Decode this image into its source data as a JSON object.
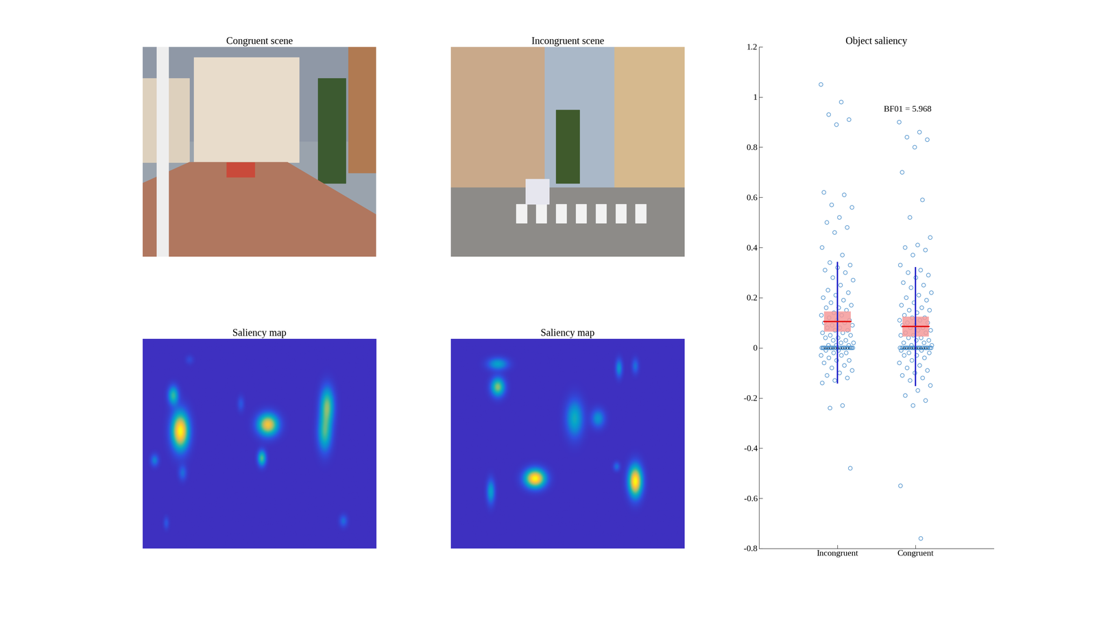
{
  "chart_data": [
    {
      "type": "image",
      "title": "Congruent scene"
    },
    {
      "type": "image",
      "title": "Incongruent scene"
    },
    {
      "type": "heatmap",
      "title": "Saliency map",
      "blobs": [
        {
          "x": 0.16,
          "y": 0.44,
          "sx": 0.025,
          "sy": 0.06,
          "amplitude": 1.0
        },
        {
          "x": 0.13,
          "y": 0.27,
          "sx": 0.015,
          "sy": 0.03,
          "amplitude": 0.5
        },
        {
          "x": 0.536,
          "y": 0.41,
          "sx": 0.03,
          "sy": 0.035,
          "amplitude": 0.85
        },
        {
          "x": 0.51,
          "y": 0.57,
          "sx": 0.012,
          "sy": 0.025,
          "amplitude": 0.55
        },
        {
          "x": 0.79,
          "y": 0.32,
          "sx": 0.02,
          "sy": 0.06,
          "amplitude": 0.6
        },
        {
          "x": 0.78,
          "y": 0.45,
          "sx": 0.02,
          "sy": 0.06,
          "amplitude": 0.5
        },
        {
          "x": 0.05,
          "y": 0.58,
          "sx": 0.012,
          "sy": 0.02,
          "amplitude": 0.25
        },
        {
          "x": 0.17,
          "y": 0.64,
          "sx": 0.012,
          "sy": 0.025,
          "amplitude": 0.2
        },
        {
          "x": 0.42,
          "y": 0.31,
          "sx": 0.01,
          "sy": 0.025,
          "amplitude": 0.15
        },
        {
          "x": 0.86,
          "y": 0.87,
          "sx": 0.012,
          "sy": 0.02,
          "amplitude": 0.2
        },
        {
          "x": 0.1,
          "y": 0.88,
          "sx": 0.008,
          "sy": 0.02,
          "amplitude": 0.15
        },
        {
          "x": 0.2,
          "y": 0.1,
          "sx": 0.012,
          "sy": 0.015,
          "amplitude": 0.1
        }
      ]
    },
    {
      "type": "heatmap",
      "title": "Saliency map",
      "blobs": [
        {
          "x": 0.36,
          "y": 0.667,
          "sx": 0.03,
          "sy": 0.03,
          "amplitude": 0.95
        },
        {
          "x": 0.79,
          "y": 0.68,
          "sx": 0.02,
          "sy": 0.05,
          "amplitude": 0.95
        },
        {
          "x": 0.2,
          "y": 0.23,
          "sx": 0.02,
          "sy": 0.03,
          "amplitude": 0.6
        },
        {
          "x": 0.2,
          "y": 0.12,
          "sx": 0.03,
          "sy": 0.02,
          "amplitude": 0.35
        },
        {
          "x": 0.53,
          "y": 0.38,
          "sx": 0.025,
          "sy": 0.06,
          "amplitude": 0.4
        },
        {
          "x": 0.63,
          "y": 0.38,
          "sx": 0.02,
          "sy": 0.03,
          "amplitude": 0.3
        },
        {
          "x": 0.17,
          "y": 0.73,
          "sx": 0.012,
          "sy": 0.04,
          "amplitude": 0.35
        },
        {
          "x": 0.72,
          "y": 0.14,
          "sx": 0.01,
          "sy": 0.03,
          "amplitude": 0.3
        },
        {
          "x": 0.79,
          "y": 0.13,
          "sx": 0.01,
          "sy": 0.025,
          "amplitude": 0.2
        },
        {
          "x": 0.71,
          "y": 0.61,
          "sx": 0.01,
          "sy": 0.015,
          "amplitude": 0.2
        }
      ]
    },
    {
      "type": "scatter",
      "title": "Object saliency",
      "categories": [
        "Incongruent",
        "Congruent"
      ],
      "values": [
        [
          1.05,
          0.98,
          0.93,
          0.91,
          0.89,
          0.62,
          0.61,
          0.57,
          0.56,
          0.52,
          0.5,
          0.48,
          0.46,
          0.4,
          0.37,
          0.34,
          0.33,
          0.32,
          0.31,
          0.3,
          0.28,
          0.27,
          0.25,
          0.23,
          0.22,
          0.21,
          0.2,
          0.19,
          0.18,
          0.17,
          0.16,
          0.16,
          0.15,
          0.14,
          0.13,
          0.13,
          0.12,
          0.11,
          0.11,
          0.1,
          0.1,
          0.09,
          0.09,
          0.08,
          0.08,
          0.07,
          0.07,
          0.06,
          0.06,
          0.05,
          0.05,
          0.04,
          0.04,
          0.03,
          0.03,
          0.02,
          0.02,
          0.01,
          0.01,
          0.01,
          0,
          0,
          0,
          0,
          0,
          0,
          0,
          0,
          0,
          0,
          0,
          0,
          0,
          0,
          0,
          0,
          0,
          0,
          0,
          0,
          0,
          0,
          0,
          0,
          0,
          -0.01,
          -0.01,
          -0.02,
          -0.02,
          -0.03,
          -0.03,
          -0.04,
          -0.05,
          -0.05,
          -0.06,
          -0.07,
          -0.08,
          -0.09,
          -0.1,
          -0.11,
          -0.12,
          -0.13,
          -0.14,
          -0.23,
          -0.24,
          -0.48
        ],
        [
          0.9,
          0.86,
          0.84,
          0.83,
          0.8,
          0.7,
          0.59,
          0.52,
          0.44,
          0.41,
          0.4,
          0.39,
          0.37,
          0.33,
          0.31,
          0.3,
          0.29,
          0.28,
          0.26,
          0.25,
          0.24,
          0.22,
          0.21,
          0.2,
          0.19,
          0.18,
          0.17,
          0.16,
          0.15,
          0.15,
          0.14,
          0.13,
          0.12,
          0.12,
          0.11,
          0.11,
          0.1,
          0.1,
          0.09,
          0.09,
          0.08,
          0.08,
          0.07,
          0.07,
          0.06,
          0.06,
          0.05,
          0.05,
          0.04,
          0.04,
          0.03,
          0.03,
          0.02,
          0.02,
          0.01,
          0.01,
          0,
          0,
          0,
          0,
          0,
          0,
          0,
          0,
          0,
          0,
          0,
          0,
          0,
          0,
          0,
          0,
          0,
          0,
          0,
          0,
          0,
          0,
          0,
          0,
          0,
          -0.01,
          -0.01,
          -0.02,
          -0.02,
          -0.03,
          -0.03,
          -0.04,
          -0.05,
          -0.06,
          -0.07,
          -0.08,
          -0.09,
          -0.1,
          -0.11,
          -0.12,
          -0.13,
          -0.15,
          -0.17,
          -0.19,
          -0.21,
          -0.23,
          -0.55,
          -0.76
        ]
      ],
      "mean": [
        0.105,
        0.085
      ],
      "ci": [
        [
          0.065,
          0.145
        ],
        [
          0.045,
          0.125
        ]
      ],
      "range": [
        [
          -0.14,
          0.34
        ],
        [
          -0.15,
          0.32
        ]
      ],
      "median": [
        0,
        0
      ],
      "annotation": "BF01 = 5.968",
      "ylim": [
        -0.8,
        1.2
      ],
      "yticks": [
        -0.8,
        -0.6,
        -0.4,
        -0.2,
        0,
        0.2,
        0.4,
        0.6,
        0.8,
        1,
        1.2
      ]
    }
  ]
}
